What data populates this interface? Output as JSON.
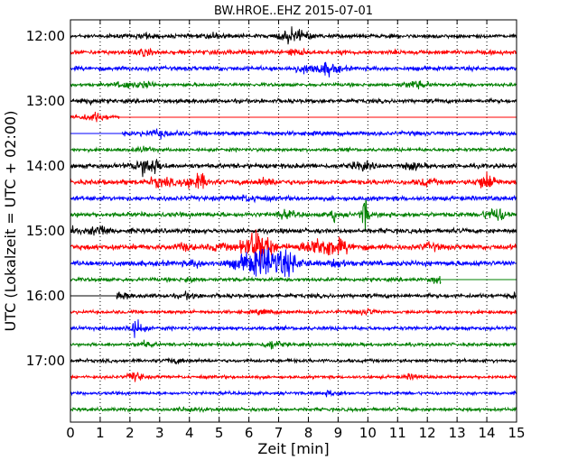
{
  "chart_data": {
    "type": "line",
    "title": "BW.HROE..EHZ 2015-07-01",
    "xlabel": "Zeit  [min]",
    "ylabel": "UTC (Lokalzeit = UTC + 02:00)",
    "xlim": [
      0,
      15
    ],
    "x_ticks": [
      "0",
      "1",
      "2",
      "3",
      "4",
      "5",
      "6",
      "7",
      "8",
      "9",
      "10",
      "11",
      "12",
      "13",
      "14",
      "15"
    ],
    "y_ticks": [
      "12:00",
      "13:00",
      "14:00",
      "15:00",
      "16:00",
      "17:00"
    ],
    "grid": true,
    "line_interval_minutes": 15,
    "colors": [
      "#000000",
      "#ff0000",
      "#0000ff",
      "#008000"
    ],
    "series": [
      {
        "start": "12:00",
        "amplitude": 0.25,
        "gap_until_min": 0,
        "stop_at_min": 15,
        "bursts": [
          [
            7.5,
            0.8,
            0.5
          ],
          [
            2.5,
            0.25,
            0.3
          ],
          [
            4.9,
            0.3,
            0.3
          ]
        ]
      },
      {
        "start": "12:15",
        "amplitude": 0.28,
        "gap_until_min": 0,
        "stop_at_min": 15,
        "bursts": [
          [
            7.6,
            0.35,
            0.3
          ],
          [
            2.5,
            0.3,
            0.3
          ]
        ]
      },
      {
        "start": "12:30",
        "amplitude": 0.28,
        "gap_until_min": 0,
        "stop_at_min": 15,
        "bursts": [
          [
            8.6,
            0.7,
            0.45
          ],
          [
            7.8,
            0.35,
            0.3
          ]
        ]
      },
      {
        "start": "12:45",
        "amplitude": 0.22,
        "gap_until_min": 0,
        "stop_at_min": 15,
        "bursts": [
          [
            11.6,
            0.4,
            0.4
          ],
          [
            1.8,
            0.35,
            0.3
          ],
          [
            2.5,
            0.35,
            0.3
          ]
        ]
      },
      {
        "start": "13:00",
        "amplitude": 0.26,
        "gap_until_min": 0,
        "stop_at_min": 15,
        "bursts": [
          [
            0.6,
            0.3,
            0.3
          ]
        ]
      },
      {
        "start": "13:15",
        "amplitude": 0.3,
        "gap_until_min": 0,
        "stop_at_min": 1.65,
        "bursts": [
          [
            0.8,
            0.4,
            0.3
          ]
        ]
      },
      {
        "start": "13:30",
        "amplitude": 0.28,
        "gap_until_min": 1.75,
        "stop_at_min": 15,
        "bursts": [
          [
            3.0,
            0.3,
            0.5
          ]
        ]
      },
      {
        "start": "13:45",
        "amplitude": 0.22,
        "gap_until_min": 0,
        "stop_at_min": 15,
        "bursts": [
          [
            2.5,
            0.25,
            0.3
          ]
        ]
      },
      {
        "start": "14:00",
        "amplitude": 0.3,
        "gap_until_min": 0,
        "stop_at_min": 15,
        "bursts": [
          [
            2.6,
            1.2,
            0.4
          ],
          [
            9.8,
            0.45,
            0.3
          ],
          [
            11.5,
            0.35,
            0.3
          ]
        ]
      },
      {
        "start": "14:15",
        "amplitude": 0.32,
        "gap_until_min": 0,
        "stop_at_min": 15,
        "bursts": [
          [
            4.2,
            1.0,
            0.4
          ],
          [
            3.0,
            0.5,
            0.4
          ],
          [
            14.0,
            1.0,
            0.3
          ],
          [
            6.6,
            0.4,
            0.3
          ],
          [
            12.0,
            0.35,
            0.3
          ]
        ]
      },
      {
        "start": "14:30",
        "amplitude": 0.3,
        "gap_until_min": 0,
        "stop_at_min": 15,
        "bursts": [
          [
            6.0,
            0.25,
            0.5
          ]
        ]
      },
      {
        "start": "14:45",
        "amplitude": 0.3,
        "gap_until_min": 0,
        "stop_at_min": 15,
        "bursts": [
          [
            9.9,
            2.0,
            0.12
          ],
          [
            8.85,
            1.2,
            0.08
          ],
          [
            14.3,
            0.8,
            0.35
          ],
          [
            7.2,
            0.4,
            0.3
          ]
        ]
      },
      {
        "start": "15:00",
        "amplitude": 0.3,
        "gap_until_min": 0,
        "stop_at_min": 15,
        "bursts": [
          [
            1.0,
            0.7,
            0.3
          ],
          [
            0.1,
            0.35,
            0.2
          ]
        ]
      },
      {
        "start": "15:15",
        "amplitude": 0.34,
        "gap_until_min": 0,
        "stop_at_min": 15,
        "bursts": [
          [
            6.3,
            2.3,
            0.45
          ],
          [
            8.6,
            1.1,
            0.8
          ],
          [
            3.8,
            0.35,
            0.3
          ],
          [
            5.0,
            0.35,
            0.3
          ],
          [
            12.1,
            0.35,
            0.3
          ]
        ]
      },
      {
        "start": "15:30",
        "amplitude": 0.34,
        "gap_until_min": 0,
        "stop_at_min": 15,
        "bursts": [
          [
            6.4,
            1.5,
            0.8
          ],
          [
            7.2,
            0.9,
            0.6
          ],
          [
            9.0,
            0.35,
            0.3
          ],
          [
            4.2,
            0.3,
            0.3
          ]
        ]
      },
      {
        "start": "15:45",
        "amplitude": 0.24,
        "gap_until_min": 0,
        "stop_at_min": 12.45,
        "bursts": [
          [
            4.0,
            0.35,
            0.2
          ],
          [
            12.3,
            0.45,
            0.2
          ]
        ]
      },
      {
        "start": "16:00",
        "amplitude": 0.26,
        "gap_until_min": 1.55,
        "stop_at_min": 15,
        "bursts": [
          [
            1.7,
            0.3,
            0.3
          ],
          [
            4.0,
            0.3,
            0.3
          ],
          [
            15.0,
            0.3,
            0.2
          ]
        ]
      },
      {
        "start": "16:15",
        "amplitude": 0.22,
        "gap_until_min": 0,
        "stop_at_min": 15,
        "bursts": [
          [
            10.0,
            0.35,
            0.3
          ],
          [
            6.5,
            0.25,
            0.3
          ]
        ]
      },
      {
        "start": "16:30",
        "amplitude": 0.24,
        "gap_until_min": 0,
        "stop_at_min": 15,
        "bursts": [
          [
            2.2,
            0.9,
            0.25
          ]
        ]
      },
      {
        "start": "16:45",
        "amplitude": 0.22,
        "gap_until_min": 0,
        "stop_at_min": 15,
        "bursts": [
          [
            6.8,
            0.5,
            0.3
          ],
          [
            2.5,
            0.3,
            0.3
          ]
        ]
      },
      {
        "start": "17:00",
        "amplitude": 0.22,
        "gap_until_min": 0,
        "stop_at_min": 15,
        "bursts": [
          [
            3.5,
            0.25,
            0.3
          ]
        ]
      },
      {
        "start": "17:15",
        "amplitude": 0.2,
        "gap_until_min": 0,
        "stop_at_min": 15,
        "bursts": [
          [
            2.2,
            0.55,
            0.25
          ],
          [
            11.5,
            0.25,
            0.3
          ]
        ]
      },
      {
        "start": "17:30",
        "amplitude": 0.2,
        "gap_until_min": 0,
        "stop_at_min": 15,
        "bursts": [
          [
            8.8,
            0.3,
            0.3
          ]
        ]
      },
      {
        "start": "17:45",
        "amplitude": 0.22,
        "gap_until_min": 0,
        "stop_at_min": 15,
        "bursts": [
          [
            4.0,
            0.25,
            0.3
          ]
        ]
      }
    ]
  }
}
